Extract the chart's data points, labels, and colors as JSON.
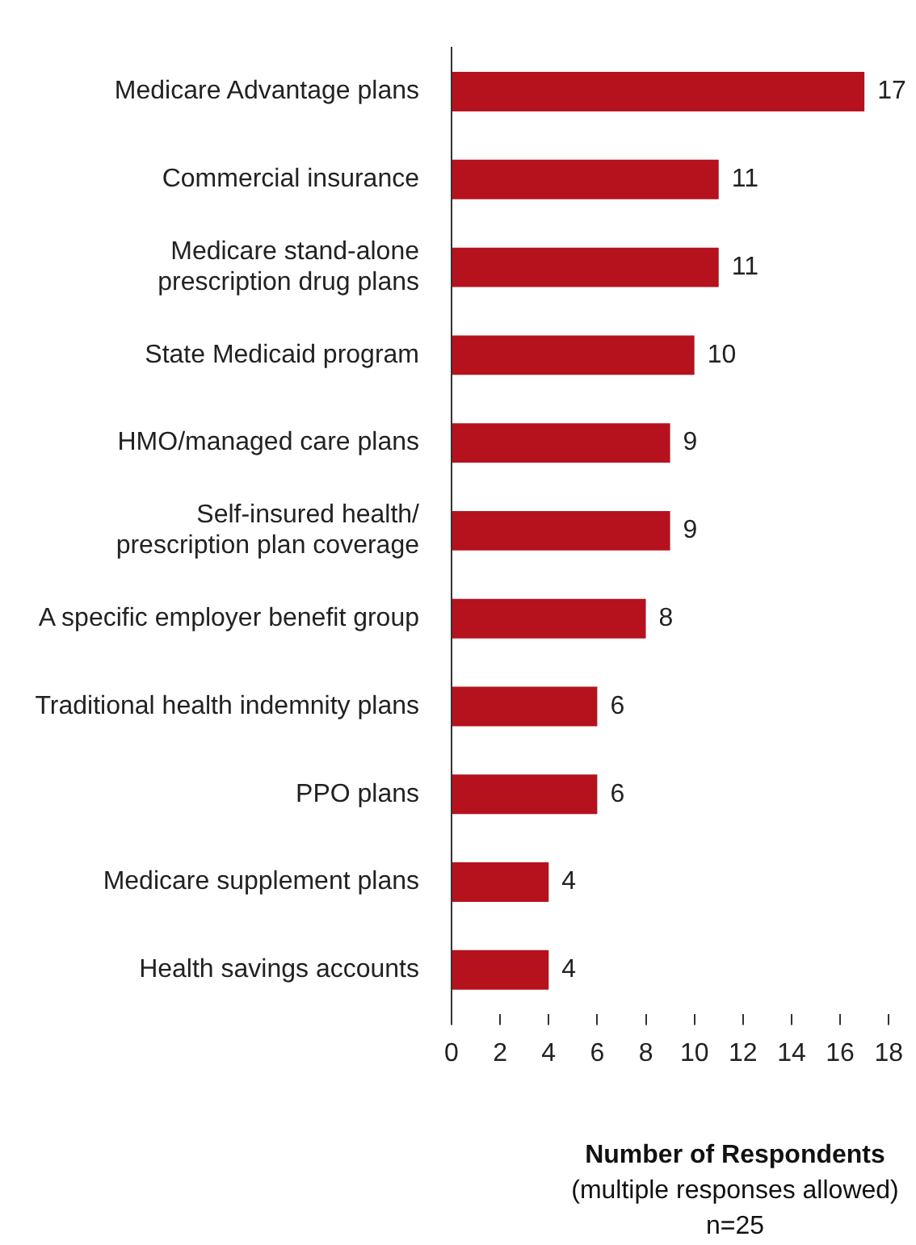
{
  "chart_data": {
    "type": "bar",
    "orientation": "horizontal",
    "xlabel": "Number of Respondents",
    "annotations": [
      "(multiple responses allowed)",
      "n=25"
    ],
    "categories": [
      "Medicare Advantage plans",
      "Commercial insurance",
      "Medicare stand-alone prescription drug plans",
      "State Medicaid program",
      "HMO/managed care plans",
      "Self-insured health/ prescription plan coverage",
      "A specific employer benefit group",
      "Traditional health indemnity plans",
      "PPO plans",
      "Medicare supplement plans",
      "Health savings accounts"
    ],
    "values": [
      17,
      11,
      11,
      10,
      9,
      9,
      8,
      6,
      6,
      4,
      4
    ],
    "color": "#b5121d",
    "xlim": [
      0,
      18
    ],
    "xticks": [
      0,
      2,
      4,
      6,
      8,
      10,
      12,
      14,
      16,
      18
    ],
    "data_labels": true,
    "grid": false,
    "legend": false
  }
}
